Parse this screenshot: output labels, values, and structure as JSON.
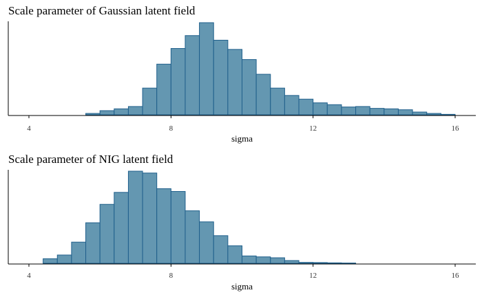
{
  "colors": {
    "bar_fill": "#6497B1",
    "bar_stroke": "#1F5F8B"
  },
  "chart_data": [
    {
      "type": "bar",
      "title": "Scale parameter of Gaussian latent field",
      "xlabel": "sigma",
      "ylabel": "",
      "xlim": [
        3.7,
        16.6
      ],
      "xticks": [
        4,
        8,
        12,
        16
      ],
      "y_axis_shown": false,
      "bin_edges": [
        5.6,
        6.0,
        6.4,
        6.8,
        7.2,
        7.6,
        8.0,
        8.4,
        8.8,
        9.2,
        9.6,
        10.0,
        10.4,
        10.8,
        11.2,
        11.6,
        12.0,
        12.4,
        12.8,
        13.2,
        13.6,
        14.0,
        14.4,
        14.8,
        15.2,
        15.6,
        16.0
      ],
      "values": [
        0.015,
        0.045,
        0.065,
        0.09,
        0.29,
        0.55,
        0.72,
        0.86,
        1.0,
        0.81,
        0.71,
        0.6,
        0.44,
        0.29,
        0.21,
        0.17,
        0.13,
        0.11,
        0.085,
        0.09,
        0.07,
        0.065,
        0.055,
        0.03,
        0.015,
        0.005
      ]
    },
    {
      "type": "bar",
      "title": "Scale parameter of NIG latent field",
      "xlabel": "sigma",
      "ylabel": "",
      "xlim": [
        3.7,
        16.6
      ],
      "xticks": [
        4,
        8,
        12,
        16
      ],
      "y_axis_shown": false,
      "bin_edges": [
        4.4,
        4.8,
        5.2,
        5.6,
        6.0,
        6.4,
        6.8,
        7.2,
        7.6,
        8.0,
        8.4,
        8.8,
        9.2,
        9.6,
        10.0,
        10.4,
        10.8,
        11.2,
        11.6,
        12.0,
        12.4,
        12.8,
        13.2
      ],
      "values": [
        0.05,
        0.09,
        0.23,
        0.44,
        0.64,
        0.77,
        1.0,
        0.98,
        0.81,
        0.78,
        0.57,
        0.45,
        0.3,
        0.19,
        0.08,
        0.07,
        0.06,
        0.03,
        0.01,
        0.008,
        0.005,
        0.003
      ]
    }
  ]
}
